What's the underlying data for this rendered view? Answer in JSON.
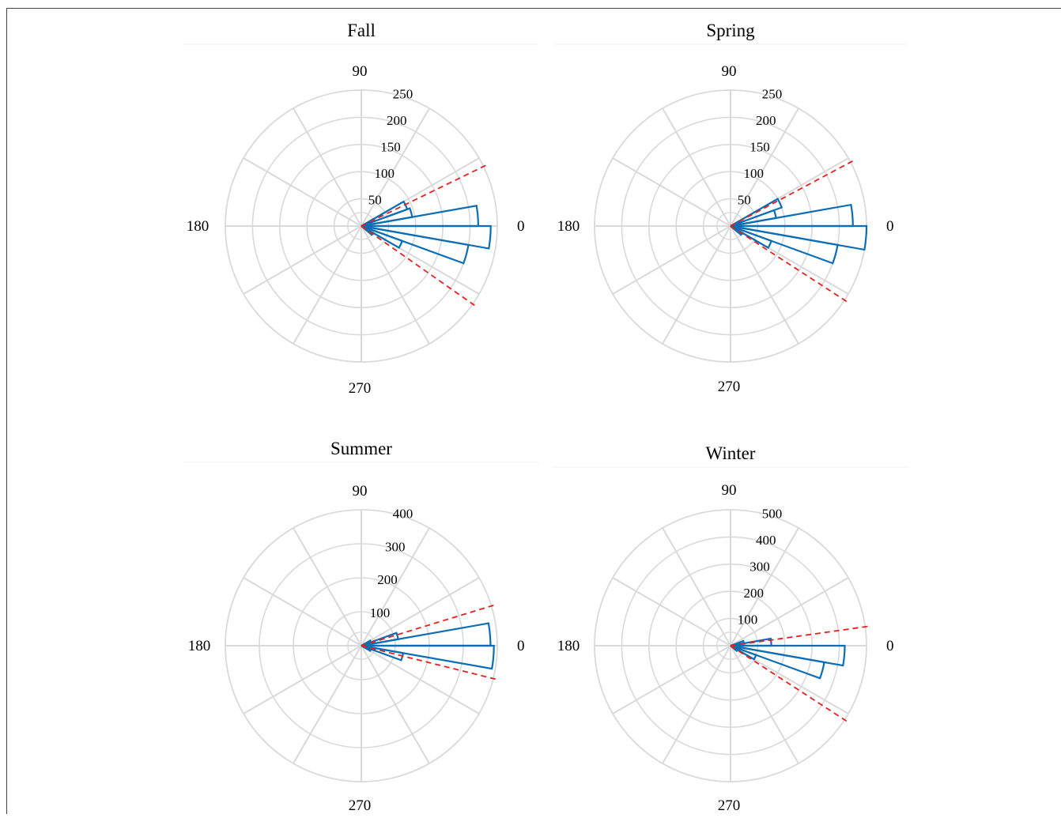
{
  "colors": {
    "bars": "#0b6eb5",
    "limits": "#e5201f",
    "grid": "#d9d9d9"
  },
  "chart_data": [
    {
      "type": "bar",
      "subtype": "polar-histogram",
      "title": "Fall",
      "angle_labels": [
        "0",
        "90",
        "180",
        "270"
      ],
      "radial_ticks": [
        "50",
        "100",
        "150",
        "200",
        "250"
      ],
      "rlim": [
        0,
        250
      ],
      "bin_width_deg": 10,
      "bars": [
        {
          "angle": 25,
          "value": 90
        },
        {
          "angle": 15,
          "value": 95
        },
        {
          "angle": 5,
          "value": 215
        },
        {
          "angle": -5,
          "value": 238
        },
        {
          "angle": -15,
          "value": 200
        },
        {
          "angle": -25,
          "value": 80
        },
        {
          "angle": -35,
          "value": 25
        }
      ],
      "limit_lines_deg": [
        26,
        -35
      ]
    },
    {
      "type": "bar",
      "subtype": "polar-histogram",
      "title": "Spring",
      "angle_labels": [
        "0",
        "90",
        "180",
        "270"
      ],
      "radial_ticks": [
        "50",
        "100",
        "150",
        "200",
        "250"
      ],
      "rlim": [
        0,
        250
      ],
      "bin_width_deg": 10,
      "bars": [
        {
          "angle": 25,
          "value": 100
        },
        {
          "angle": 15,
          "value": 85
        },
        {
          "angle": 5,
          "value": 225
        },
        {
          "angle": -5,
          "value": 250
        },
        {
          "angle": -15,
          "value": 200
        },
        {
          "angle": -25,
          "value": 80
        },
        {
          "angle": -35,
          "value": 25
        }
      ],
      "limit_lines_deg": [
        28,
        -33
      ]
    },
    {
      "type": "bar",
      "subtype": "polar-histogram",
      "title": "Summer",
      "angle_labels": [
        "0",
        "90",
        "180",
        "270"
      ],
      "radial_ticks": [
        "100",
        "200",
        "300",
        "400"
      ],
      "rlim": [
        0,
        400
      ],
      "bin_width_deg": 10,
      "bars": [
        {
          "angle": 25,
          "value": 30
        },
        {
          "angle": 15,
          "value": 110
        },
        {
          "angle": 5,
          "value": 380
        },
        {
          "angle": -5,
          "value": 390
        },
        {
          "angle": -15,
          "value": 125
        },
        {
          "angle": -25,
          "value": 30
        }
      ],
      "limit_lines_deg": [
        17,
        -14
      ]
    },
    {
      "type": "bar",
      "subtype": "polar-histogram",
      "title": "Winter",
      "angle_labels": [
        "0",
        "90",
        "180",
        "270"
      ],
      "radial_ticks": [
        "100",
        "200",
        "300",
        "400",
        "500"
      ],
      "rlim": [
        0,
        500
      ],
      "bin_width_deg": 10,
      "bars": [
        {
          "angle": 15,
          "value": 50
        },
        {
          "angle": 5,
          "value": 150
        },
        {
          "angle": -5,
          "value": 420
        },
        {
          "angle": -15,
          "value": 350
        },
        {
          "angle": -25,
          "value": 100
        },
        {
          "angle": -35,
          "value": 30
        }
      ],
      "limit_lines_deg": [
        8,
        -33
      ]
    }
  ]
}
